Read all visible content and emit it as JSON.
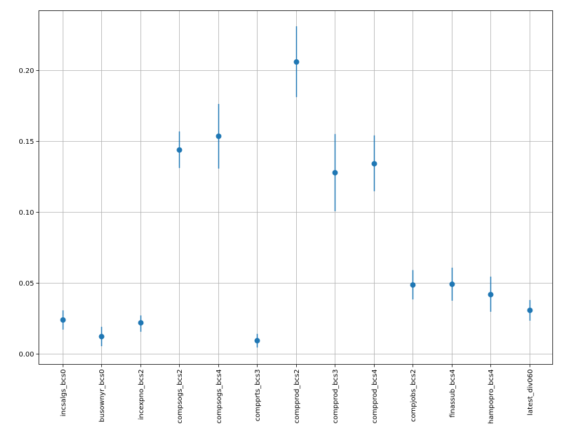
{
  "chart_data": {
    "type": "scatter",
    "subtype": "errorbar",
    "title": "",
    "xlabel": "",
    "ylabel": "",
    "ylim": [
      -0.007,
      0.243
    ],
    "yticks": [
      0.0,
      0.05,
      0.1,
      0.15,
      0.2
    ],
    "ytick_labels": [
      "0.00",
      "0.05",
      "0.10",
      "0.15",
      "0.20"
    ],
    "grid": true,
    "legend": null,
    "color": "#1f77b4",
    "categories": [
      "incsalgs_bcs0",
      "busownyr_bcs0",
      "incexpno_bcs2",
      "compsogs_bcs2",
      "compsogs_bcs4",
      "compprts_bcs3",
      "compprod_bcs2",
      "compprod_bcs3",
      "compprod_bcs4",
      "compjobs_bcs2",
      "finassub_bcs4",
      "hampopro_bcs4",
      "latest_div060"
    ],
    "values": [
      0.0238,
      0.0121,
      0.0218,
      0.1437,
      0.1534,
      0.0092,
      0.2058,
      0.1277,
      0.134,
      0.0485,
      0.049,
      0.0417,
      0.0306
    ],
    "error_low": [
      0.017,
      0.0053,
      0.0155,
      0.131,
      0.1306,
      0.0044,
      0.181,
      0.1005,
      0.1146,
      0.0383,
      0.0374,
      0.0296,
      0.0233
    ],
    "error_high": [
      0.0306,
      0.019,
      0.027,
      0.1568,
      0.1762,
      0.014,
      0.231,
      0.155,
      0.154,
      0.059,
      0.0607,
      0.0544,
      0.0379
    ]
  }
}
